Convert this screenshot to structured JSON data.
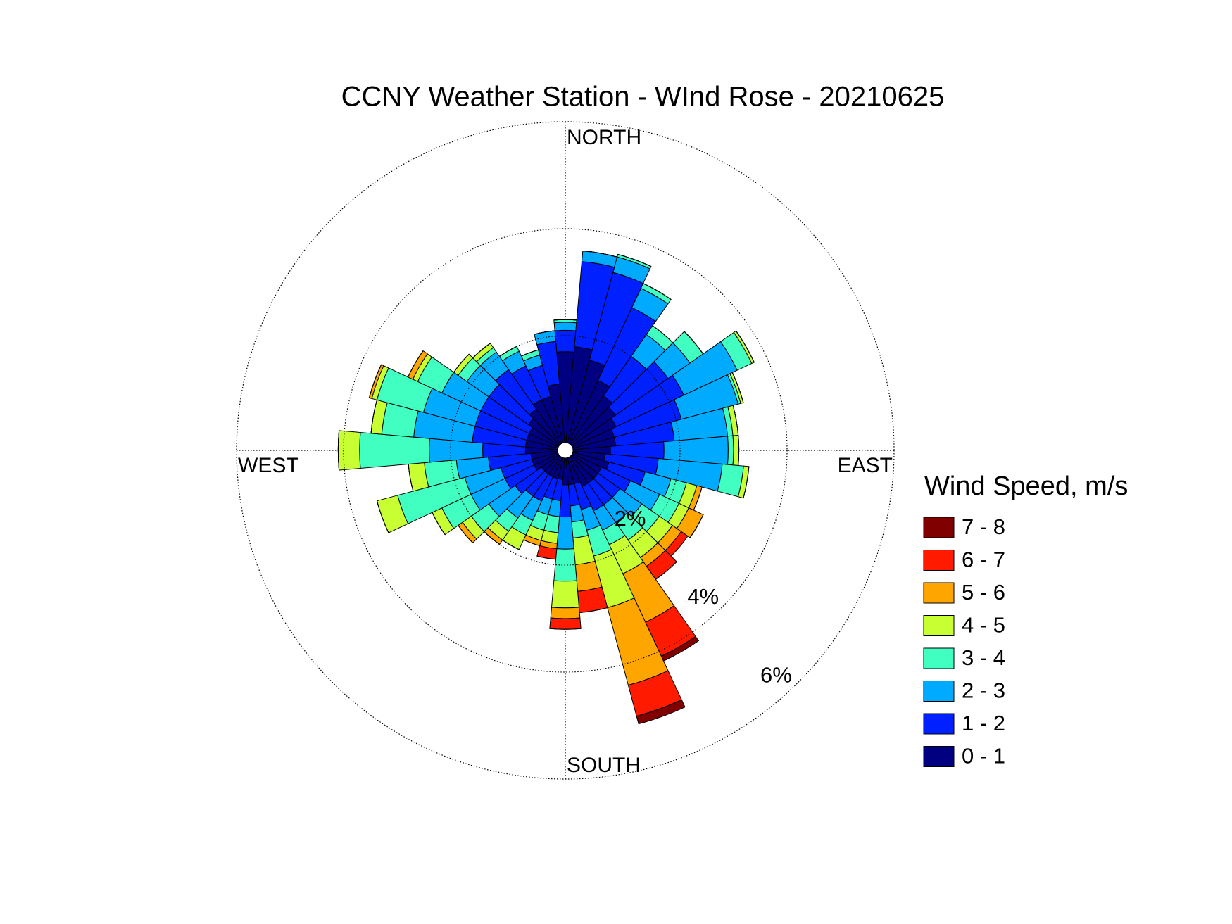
{
  "chart_data": {
    "type": "windrose",
    "title": "CCNY Weather Station - WInd Rose - 20210625",
    "direction_labels": [
      "NORTH",
      "EAST",
      "SOUTH",
      "WEST"
    ],
    "x": [
      0,
      10,
      20,
      30,
      40,
      50,
      60,
      70,
      80,
      90,
      100,
      110,
      120,
      130,
      140,
      150,
      160,
      170,
      180,
      190,
      200,
      210,
      220,
      230,
      240,
      250,
      260,
      270,
      280,
      290,
      300,
      310,
      320,
      330,
      340,
      350
    ],
    "rlim": [
      0,
      6
    ],
    "rticks": [
      {
        "value": 2,
        "label": "2%"
      },
      {
        "value": 4,
        "label": "4%"
      },
      {
        "value": 6,
        "label": "6%"
      }
    ],
    "legend_title": "Wind Speed, m/s",
    "series": [
      {
        "name": "0 - 1",
        "color": "#000080",
        "values": [
          1.7,
          1.8,
          1.6,
          1.3,
          1.1,
          1.0,
          0.9,
          0.8,
          0.8,
          0.7,
          0.6,
          0.7,
          0.6,
          0.6,
          0.6,
          0.6,
          0.5,
          0.5,
          0.5,
          0.4,
          0.4,
          0.4,
          0.4,
          0.4,
          0.5,
          0.5,
          0.5,
          0.6,
          0.6,
          0.6,
          0.6,
          0.7,
          0.8,
          0.9,
          0.9,
          1.1
        ]
      },
      {
        "name": "1 - 2",
        "color": "#0020ff",
        "values": [
          0.4,
          1.6,
          1.7,
          1.5,
          0.9,
          1.2,
          1.4,
          1.3,
          1.1,
          1.0,
          1.0,
          0.7,
          0.6,
          0.5,
          0.5,
          0.5,
          0.5,
          0.4,
          0.6,
          0.4,
          0.4,
          0.5,
          0.5,
          0.6,
          0.6,
          0.6,
          0.8,
          0.8,
          1.0,
          1.0,
          1.0,
          0.9,
          0.9,
          0.7,
          0.6,
          0.8
        ]
      },
      {
        "name": "2 - 3",
        "color": "#00aaff",
        "values": [
          0.15,
          0.2,
          0.3,
          0.4,
          0.5,
          0.5,
          1.1,
          1.1,
          1.0,
          1.2,
          1.2,
          0.5,
          0.6,
          0.5,
          0.4,
          0.4,
          0.4,
          0.3,
          0.6,
          0.3,
          0.3,
          0.4,
          0.5,
          0.6,
          0.7,
          0.7,
          0.6,
          1.0,
          1.1,
          1.0,
          0.8,
          0.5,
          0.4,
          0.3,
          0.2,
          0.2
        ]
      },
      {
        "name": "3 - 4",
        "color": "#40ffc0",
        "values": [
          0.05,
          0,
          0.05,
          0.1,
          0.2,
          0.3,
          0.3,
          0.05,
          0.1,
          0.1,
          0.4,
          0.3,
          0.4,
          0.4,
          0.4,
          0.3,
          0.5,
          0.3,
          0.6,
          0.3,
          0.3,
          0.3,
          0.3,
          0.4,
          0.6,
          1.3,
          0.6,
          1.3,
          0.6,
          0.9,
          0.5,
          0.2,
          0.1,
          0.1,
          0.1,
          0
        ]
      },
      {
        "name": "4 - 5",
        "color": "#c8ff32",
        "values": [
          0,
          0,
          0,
          0,
          0,
          0,
          0.05,
          0.05,
          0.1,
          0.1,
          0.1,
          0.2,
          0.2,
          0.3,
          0.4,
          0.6,
          1.0,
          0.5,
          0.5,
          0.2,
          0.2,
          0.3,
          0.2,
          0.2,
          0.2,
          0.4,
          0.3,
          0.4,
          0.2,
          0.1,
          0.1,
          0.1,
          0.1,
          0,
          0,
          0
        ]
      },
      {
        "name": "5 - 6",
        "color": "#ffa500",
        "values": [
          0,
          0,
          0,
          0,
          0,
          0,
          0,
          0,
          0,
          0,
          0,
          0.1,
          0.3,
          0.2,
          0.2,
          1.0,
          1.5,
          0.5,
          0.2,
          0.1,
          0.1,
          0,
          0.1,
          0.1,
          0,
          0,
          0,
          0,
          0,
          0.05,
          0.1,
          0,
          0,
          0,
          0,
          0
        ]
      },
      {
        "name": "6 - 7",
        "color": "#ff1a00",
        "values": [
          0,
          0,
          0,
          0,
          0,
          0,
          0,
          0,
          0,
          0,
          0,
          0,
          0,
          0.15,
          0.3,
          0.7,
          0.6,
          0.4,
          0.2,
          0.2,
          0,
          0,
          0,
          0,
          0,
          0,
          0,
          0,
          0,
          0,
          0,
          0,
          0,
          0,
          0,
          0
        ]
      },
      {
        "name": "7 - 8",
        "color": "#800000",
        "values": [
          0,
          0,
          0,
          0,
          0,
          0,
          0,
          0,
          0,
          0,
          0,
          0,
          0,
          0,
          0,
          0.1,
          0.15,
          0,
          0,
          0,
          0,
          0,
          0,
          0,
          0,
          0,
          0,
          0,
          0,
          0,
          0,
          0,
          0,
          0,
          0,
          0
        ]
      }
    ]
  }
}
